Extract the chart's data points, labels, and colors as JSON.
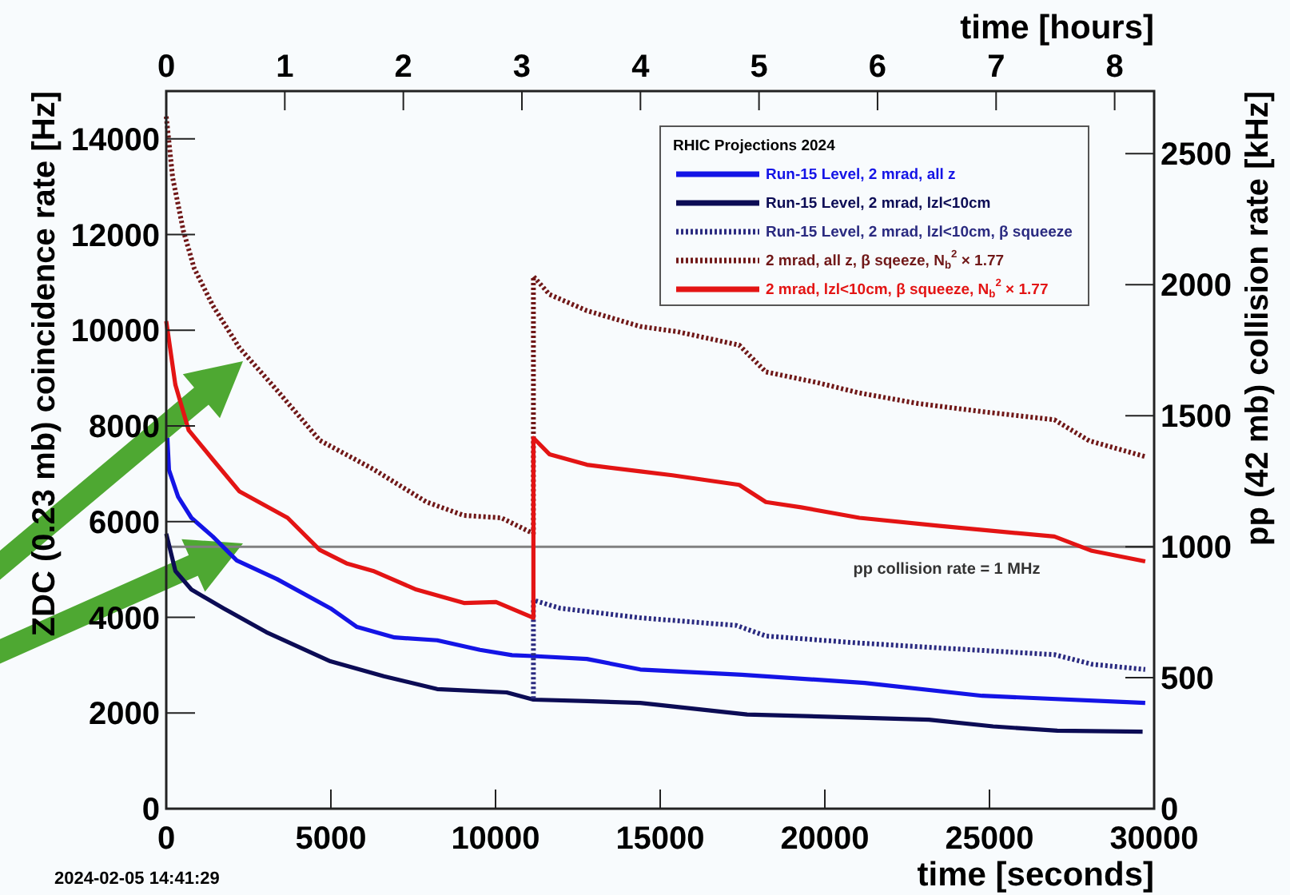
{
  "chart_data": {
    "type": "line",
    "xlabel": "time [seconds]",
    "x2label": "time [hours]",
    "ylabel": "ZDC (0.23 mb) coincidence rate [Hz]",
    "y2label": "pp (42 mb) collision rate [kHz]",
    "legend_title": "RHIC Projections 2024",
    "legend": "top right",
    "grid": false,
    "marker": "none",
    "xlim": [
      0,
      30000
    ],
    "xticks": [
      0,
      5000,
      10000,
      15000,
      20000,
      25000,
      30000
    ],
    "x2lim": [
      0,
      8.333
    ],
    "x2ticks": [
      0,
      1,
      2,
      3,
      4,
      5,
      6,
      7,
      8
    ],
    "ylim": [
      0,
      15000
    ],
    "yticks": [
      0,
      2000,
      4000,
      6000,
      8000,
      10000,
      12000,
      14000
    ],
    "y2lim": [
      0,
      2739
    ],
    "y2ticks": [
      0,
      500,
      1000,
      1500,
      2000,
      2500
    ],
    "ref_lines": [
      {
        "axis": "y2",
        "value": 1000,
        "color": "#808080"
      }
    ],
    "annotations": [
      "2024-02-05 14:41:29",
      {
        "text": "pp collision rate = 1 MHz",
        "x": 23700,
        "y": 5480
      }
    ],
    "series": [
      {
        "name": "Run-15 Level, 2 mrad, all z",
        "color": "#1414e6",
        "line_style": "solid",
        "x": [
          34,
          83,
          360,
          764,
          1412,
          2142,
          3360,
          4985,
          5793,
          6933,
          8228,
          9528,
          10500,
          11150,
          12775,
          14396,
          17480,
          21210,
          24780,
          29730
        ],
        "values": [
          7750,
          7080,
          6520,
          6080,
          5690,
          5190,
          4800,
          4190,
          3800,
          3580,
          3520,
          3320,
          3210,
          3190,
          3130,
          2910,
          2800,
          2630,
          2360,
          2210
        ]
      },
      {
        "name": "Run-15 Level, 2 mrad, lzl<10cm",
        "color": "#0c0c55",
        "line_style": "solid",
        "x": [
          0,
          277,
          764,
          1738,
          3038,
          4985,
          6607,
          8228,
          10340,
          11150,
          12775,
          14396,
          17640,
          23160,
          25110,
          27060,
          29650
        ],
        "values": [
          5750,
          4970,
          4580,
          4190,
          3690,
          3080,
          2770,
          2500,
          2430,
          2280,
          2250,
          2210,
          1970,
          1860,
          1720,
          1630,
          1610
        ]
      },
      {
        "name": "Run-15 Level, 2 mrad, lzl<10cm, β squeeze",
        "color": "#2a2a80",
        "line_style": "dotted",
        "x": [
          11150,
          11150,
          11962,
          14396,
          17320,
          18210,
          20890,
          23490,
          26970,
          28110,
          29730
        ],
        "values": [
          2300,
          4360,
          4190,
          3990,
          3830,
          3610,
          3470,
          3360,
          3220,
          3020,
          2910
        ]
      },
      {
        "name": "2 mrad, all z, β sqeeze, N$_{b}$$^{2}$ × 1.77",
        "color": "#701818",
        "line_style": "dotted",
        "x": [
          0,
          195,
          520,
          847,
          1412,
          2225,
          3360,
          4660,
          6280,
          7906,
          9040,
          10175,
          11150,
          11150,
          11636,
          12775,
          14396,
          15530,
          17400,
          18210,
          19750,
          21050,
          22830,
          24780,
          26970,
          28030,
          29730
        ],
        "values": [
          14470,
          13190,
          12080,
          11300,
          10520,
          9630,
          8750,
          7700,
          7100,
          6410,
          6130,
          6080,
          5750,
          11130,
          10750,
          10410,
          10080,
          9970,
          9690,
          9130,
          8910,
          8690,
          8470,
          8300,
          8130,
          7690,
          7360
        ]
      },
      {
        "name": "2 mrad, lzl<10cm, β squeeze, N$_{b}$$^{2}$ × 1.77",
        "color": "#e31414",
        "line_style": "solid",
        "x": [
          0,
          277,
          682,
          1412,
          2225,
          3685,
          4660,
          5472,
          6280,
          7595,
          9040,
          10015,
          11150,
          11150,
          11636,
          12775,
          14396,
          15370,
          17400,
          18210,
          19280,
          21050,
          23490,
          26970,
          28110,
          29730
        ],
        "values": [
          10190,
          8860,
          7910,
          7300,
          6630,
          6080,
          5410,
          5130,
          4970,
          4580,
          4300,
          4320,
          3990,
          7750,
          7410,
          7190,
          7050,
          6970,
          6770,
          6410,
          6300,
          6080,
          5910,
          5690,
          5390,
          5170
        ]
      }
    ]
  }
}
